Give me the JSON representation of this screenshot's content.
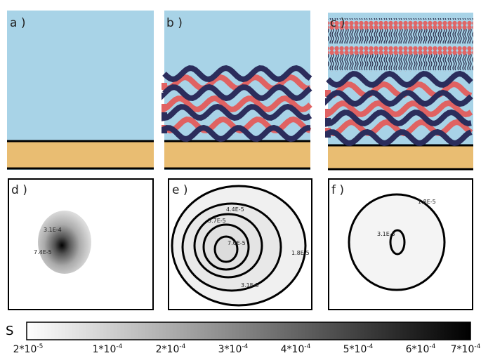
{
  "panels": {
    "a": "a )",
    "b": "b )",
    "c": "c )",
    "d": "d )",
    "e": "e )",
    "f": "f )"
  },
  "contours": {
    "d": [
      "3.1E-4",
      "7.4E-5"
    ],
    "e": [
      "4.4E-5",
      "5.7E-5",
      "7.0E-5",
      "1.8E-5",
      "3.1E-5"
    ],
    "f": [
      "1.8E-5",
      "3.1E-5"
    ]
  },
  "colorbar": {
    "title": "S",
    "ticks": [
      {
        "base": "2*10",
        "exp": "-5"
      },
      {
        "base": "1*10",
        "exp": "-4"
      },
      {
        "base": "2*10",
        "exp": "-4"
      },
      {
        "base": "3*10",
        "exp": "-4"
      },
      {
        "base": "4*10",
        "exp": "-4"
      },
      {
        "base": "5*10",
        "exp": "-4"
      },
      {
        "base": "6*10",
        "exp": "-4"
      },
      {
        "base": "7*10",
        "exp": "-4"
      }
    ]
  }
}
